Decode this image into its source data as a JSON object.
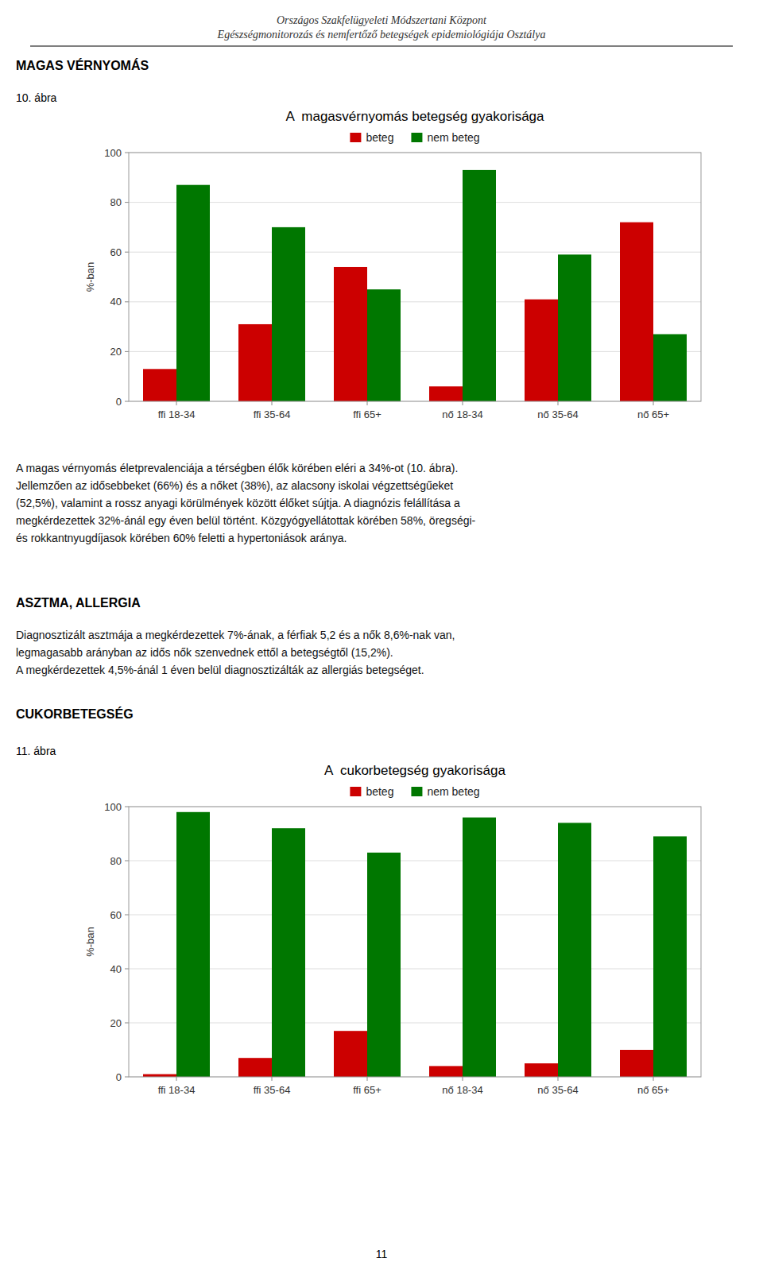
{
  "page_texts": {
    "header": [
      "Országos Szakfelügyeleti Módszertani Központ",
      "Egészségmonitorozás és nemfertőző betegségek epidemiológiája Osztálya"
    ],
    "section1_title": "MAGAS VÉRNYOMÁS",
    "figure1_label": "10. ábra",
    "paragraph1": [
      "A magas vérnyomás életprevalenciája a térségben élők körében eléri a 34%-ot (10. ábra).",
      "Jellemzően az idősebbeket (66%) és a nőket (38%), az alacsony iskolai végzettségűeket",
      "(52,5%), valamint a rossz anyagi körülmények között élőket sújtja. A diagnózis felállítása a",
      "megkérdezettek 32%-ánál egy éven belül történt. Közgyógyellátottak körében 58%, öregségi-",
      "és rokkantnyugdíjasok körében 60% feletti a hypertoniások aránya."
    ],
    "section2_title": "ASZTMA, ALLERGIA",
    "paragraph2": [
      "Diagnosztizált asztmája a megkérdezettek 7%-ának, a férfiak 5,2 és a nők 8,6%-nak van,",
      "legmagasabb arányban az idős nők szenvednek ettől a betegségtől (15,2%).",
      "A megkérdezettek 4,5%-ánál 1 éven belül diagnosztizálták az allergiás betegséget."
    ],
    "section3_title": "CUKORBETEGSÉG",
    "figure2_label": "11. ábra",
    "footer": "11"
  },
  "chart_data": [
    {
      "type": "bar",
      "title": "A  magasvérnyomás betegség gyakorisága",
      "categories": [
        "ffi 18-34",
        "ffi 35-64",
        "ffi 65+",
        "nő 18-34",
        "nő 35-64",
        "nő 65+"
      ],
      "series": [
        {
          "name": "beteg",
          "color": "#cc0000",
          "values": [
            13,
            31,
            54,
            6,
            41,
            72
          ]
        },
        {
          "name": "nem beteg",
          "color": "#007700",
          "values": [
            87,
            70,
            45,
            93,
            59,
            27
          ]
        }
      ],
      "ylabel": "%-ban",
      "ylim": [
        0,
        100
      ],
      "yticks": [
        0,
        20,
        40,
        60,
        80,
        100
      ],
      "grid": true,
      "legend": "top"
    },
    {
      "type": "bar",
      "title": "A  cukorbetegség gyakorisága",
      "categories": [
        "ffi 18-34",
        "ffi 35-64",
        "ffi 65+",
        "nő 18-34",
        "nő 35-64",
        "nő 65+"
      ],
      "series": [
        {
          "name": "beteg",
          "color": "#cc0000",
          "values": [
            1,
            7,
            17,
            4,
            5,
            10
          ]
        },
        {
          "name": "nem beteg",
          "color": "#007700",
          "values": [
            98,
            92,
            83,
            96,
            94,
            89
          ]
        }
      ],
      "ylabel": "%-ban",
      "ylim": [
        0,
        100
      ],
      "yticks": [
        0,
        20,
        40,
        60,
        80,
        100
      ],
      "grid": true,
      "legend": "top"
    }
  ]
}
